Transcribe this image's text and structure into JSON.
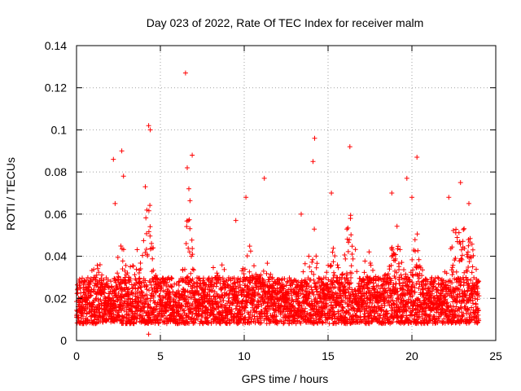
{
  "chart_data": {
    "type": "scatter",
    "title": "Day 023 of 2022, Rate Of TEC Index for receiver malm",
    "xlabel": "GPS time / hours",
    "ylabel": "ROTI / TECUs",
    "xlim": [
      0,
      25
    ],
    "ylim": [
      0,
      0.14
    ],
    "xticks": [
      0,
      5,
      10,
      15,
      20,
      25
    ],
    "yticks": [
      0,
      0.02,
      0.04,
      0.06,
      0.08,
      0.1,
      0.12,
      0.14
    ],
    "xtick_labels": [
      "0",
      "5",
      "10",
      "15",
      "20",
      "25"
    ],
    "ytick_labels": [
      "0",
      "0.02",
      "0.04",
      "0.06",
      "0.08",
      "0.1",
      "0.12",
      "0.14"
    ],
    "grid": true,
    "marker": "+",
    "color": "#ff0000",
    "x_range_data": [
      0,
      24
    ],
    "baseline_band": [
      0.008,
      0.03
    ],
    "notable_points": [
      {
        "x": 6.5,
        "y": 0.127
      },
      {
        "x": 4.3,
        "y": 0.102
      },
      {
        "x": 4.4,
        "y": 0.1
      },
      {
        "x": 14.2,
        "y": 0.096
      },
      {
        "x": 16.3,
        "y": 0.092
      },
      {
        "x": 2.7,
        "y": 0.09
      },
      {
        "x": 6.9,
        "y": 0.088
      },
      {
        "x": 20.3,
        "y": 0.087
      },
      {
        "x": 2.2,
        "y": 0.086
      },
      {
        "x": 14.1,
        "y": 0.085
      },
      {
        "x": 6.6,
        "y": 0.082
      },
      {
        "x": 2.8,
        "y": 0.078
      },
      {
        "x": 11.2,
        "y": 0.077
      },
      {
        "x": 19.7,
        "y": 0.077
      },
      {
        "x": 22.9,
        "y": 0.075
      },
      {
        "x": 4.1,
        "y": 0.073
      },
      {
        "x": 6.7,
        "y": 0.072
      },
      {
        "x": 15.2,
        "y": 0.07
      },
      {
        "x": 18.8,
        "y": 0.07
      },
      {
        "x": 10.1,
        "y": 0.068
      },
      {
        "x": 20.0,
        "y": 0.068
      },
      {
        "x": 22.2,
        "y": 0.068
      },
      {
        "x": 2.3,
        "y": 0.065
      },
      {
        "x": 23.4,
        "y": 0.065
      },
      {
        "x": 13.4,
        "y": 0.06
      },
      {
        "x": 9.5,
        "y": 0.057
      },
      {
        "x": 4.3,
        "y": 0.003
      }
    ]
  }
}
